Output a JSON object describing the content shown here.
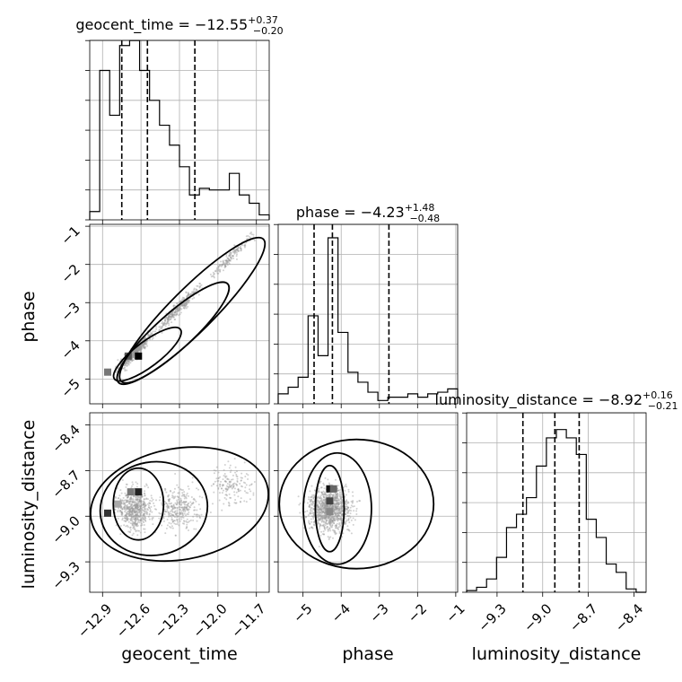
{
  "chart_data": {
    "type": "corner",
    "parameters": [
      "geocent_time",
      "phase",
      "luminosity_distance"
    ],
    "titles": [
      {
        "param": "geocent_time",
        "text": "geocent_time = −12.55",
        "upper": "+0.37",
        "lower": "−0.20"
      },
      {
        "param": "phase",
        "text": "phase = −4.23",
        "upper": "+1.48",
        "lower": "−0.48"
      },
      {
        "param": "luminosity_distance",
        "text": "luminosity_distance = −8.92",
        "upper": "+0.16",
        "lower": "−0.21"
      }
    ],
    "axes": {
      "geocent_time": {
        "range": [
          -13.0,
          -11.6
        ],
        "ticks": [
          -12.9,
          -12.6,
          -12.3,
          -12.0,
          -11.7
        ],
        "tick_labels": [
          "−12.9",
          "−12.6",
          "−12.3",
          "−12.0",
          "−11.7"
        ]
      },
      "phase": {
        "range": [
          -5.65,
          -0.95
        ],
        "ticks": [
          -5,
          -4,
          -3,
          -2,
          -1
        ],
        "tick_labels": [
          "−5",
          "−4",
          "−3",
          "−2",
          "−1"
        ]
      },
      "luminosity_distance": {
        "range": [
          -9.5,
          -8.32
        ],
        "ticks": [
          -9.3,
          -9.0,
          -8.7,
          -8.4
        ],
        "tick_labels": [
          "−9.3",
          "−9.0",
          "−8.7",
          "−8.4"
        ]
      }
    },
    "histograms": {
      "geocent_time": {
        "range": [
          -13.0,
          -11.6
        ],
        "counts": [
          0.05,
          0.9,
          0.63,
          1.05,
          1.08,
          0.9,
          0.72,
          0.57,
          0.45,
          0.32,
          0.15,
          0.19,
          0.18,
          0.18,
          0.28,
          0.15,
          0.1,
          0.03
        ],
        "quantiles": [
          -12.75,
          -12.55,
          -12.18
        ]
      },
      "phase": {
        "range": [
          -5.65,
          -0.95
        ],
        "counts": [
          0.06,
          0.1,
          0.16,
          0.53,
          0.29,
          1.0,
          0.43,
          0.19,
          0.13,
          0.07,
          0.02,
          0.04,
          0.04,
          0.06,
          0.04,
          0.06,
          0.07,
          0.09
        ],
        "quantiles": [
          -4.71,
          -4.23,
          -2.75
        ]
      },
      "luminosity_distance": {
        "range": [
          -9.5,
          -8.32
        ],
        "counts": [
          0.01,
          0.03,
          0.08,
          0.21,
          0.39,
          0.47,
          0.57,
          0.76,
          0.93,
          0.98,
          0.93,
          0.83,
          0.44,
          0.33,
          0.17,
          0.12,
          0.02,
          0.0
        ],
        "quantiles": [
          -9.13,
          -8.92,
          -8.76
        ]
      }
    },
    "grid": true,
    "xlabel": [
      "geocent_time",
      "phase",
      "luminosity_distance"
    ],
    "ylabel": [
      "phase",
      "luminosity_distance"
    ]
  }
}
